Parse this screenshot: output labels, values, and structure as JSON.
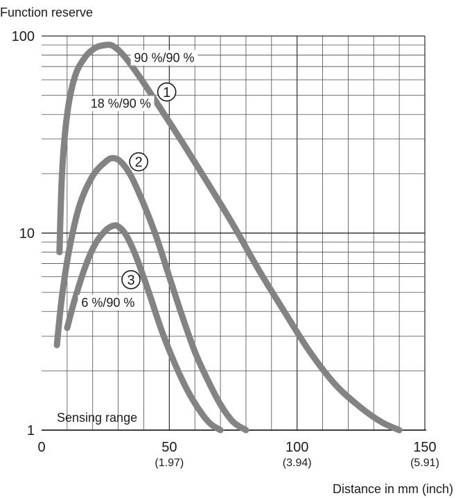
{
  "chart_data": {
    "type": "line",
    "title": "",
    "ylabel": "Function reserve",
    "xlabel": "Distance in mm (inch)",
    "y_scale": "log",
    "ylim": [
      1,
      100
    ],
    "xlim": [
      0,
      150
    ],
    "grid": true,
    "y_ticks": [
      {
        "value": 1,
        "label": "1"
      },
      {
        "value": 10,
        "label": "10"
      },
      {
        "value": 100,
        "label": "100"
      }
    ],
    "x_ticks": [
      {
        "value": 0,
        "label": "0",
        "sublabel": ""
      },
      {
        "value": 50,
        "label": "50",
        "sublabel": "(1.97)"
      },
      {
        "value": 100,
        "label": "100",
        "sublabel": "(3.94)"
      },
      {
        "value": 150,
        "label": "150",
        "sublabel": "(5.91)"
      }
    ],
    "baseline_label": "Sensing range",
    "series": [
      {
        "name": "90 %/90 %",
        "marker": "①",
        "x": [
          7,
          8,
          10,
          13,
          17,
          21,
          25,
          28,
          32,
          38,
          45,
          55,
          65,
          75,
          85,
          95,
          105,
          115,
          125,
          133,
          140
        ],
        "y": [
          8,
          20,
          40,
          62,
          78,
          87,
          90,
          89,
          80,
          63,
          46,
          29,
          18,
          11,
          6.5,
          4,
          2.5,
          1.7,
          1.3,
          1.1,
          1.0
        ]
      },
      {
        "name": "18 %/90 %",
        "marker": "②",
        "x": [
          6,
          8,
          11,
          15,
          20,
          25,
          28,
          31,
          35,
          40,
          45,
          50,
          55,
          60,
          65,
          70,
          75,
          80
        ],
        "y": [
          2.7,
          4.8,
          8.5,
          14,
          19.5,
          23,
          24,
          23,
          19.5,
          14,
          9.5,
          6,
          3.8,
          2.5,
          1.8,
          1.35,
          1.1,
          1.0
        ]
      },
      {
        "name": "6 %/90 %",
        "marker": "③",
        "x": [
          10,
          13,
          17,
          21,
          25,
          28,
          30,
          33,
          37,
          42,
          47,
          52,
          57,
          62,
          66,
          70
        ],
        "y": [
          3.3,
          4.6,
          6.7,
          8.8,
          10.3,
          10.9,
          10.8,
          9.8,
          7.6,
          5,
          3.2,
          2.2,
          1.6,
          1.25,
          1.08,
          1.0
        ]
      }
    ],
    "colors": {
      "curve": "#838383",
      "grid": "#4a4a4a"
    }
  }
}
